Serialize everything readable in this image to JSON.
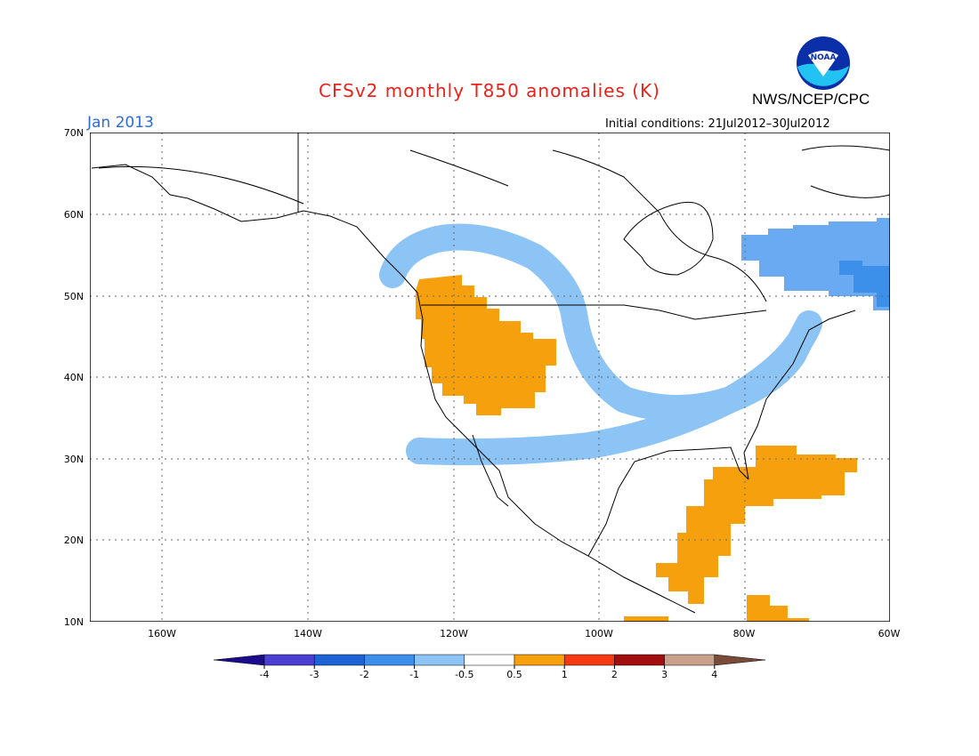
{
  "header": {
    "title": "CFSv2 monthly T850 anomalies (K)",
    "agency": "NWS/NCEP/CPC",
    "month": "Jan 2013",
    "initial_conditions": "Initial conditions: 21Jul2012–30Jul2012"
  },
  "logo": {
    "text": "NOAA"
  },
  "map": {
    "lat_ticks": [
      "70N",
      "60N",
      "50N",
      "40N",
      "30N",
      "20N",
      "10N"
    ],
    "lon_ticks": [
      "160W",
      "140W",
      "120W",
      "100W",
      "80W",
      "60W"
    ],
    "colors": {
      "cool_band": "#8cc4f5",
      "cool_medium": "#6aaaf3",
      "cool_strong": "#3d90ea",
      "warm": "#f6a00e",
      "coast": "#000000"
    }
  },
  "colorbar": {
    "labels": [
      "-4",
      "-3",
      "-2",
      "-1",
      "-0.5",
      "0.5",
      "1",
      "2",
      "3",
      "4"
    ],
    "colors": [
      "#1a0c8c",
      "#4a3fd1",
      "#1e63d4",
      "#3d90ea",
      "#8cc4f5",
      "#ffffff",
      "#f6a00e",
      "#f43a12",
      "#a10e0e",
      "#c9a089",
      "#7a4a3a"
    ]
  }
}
